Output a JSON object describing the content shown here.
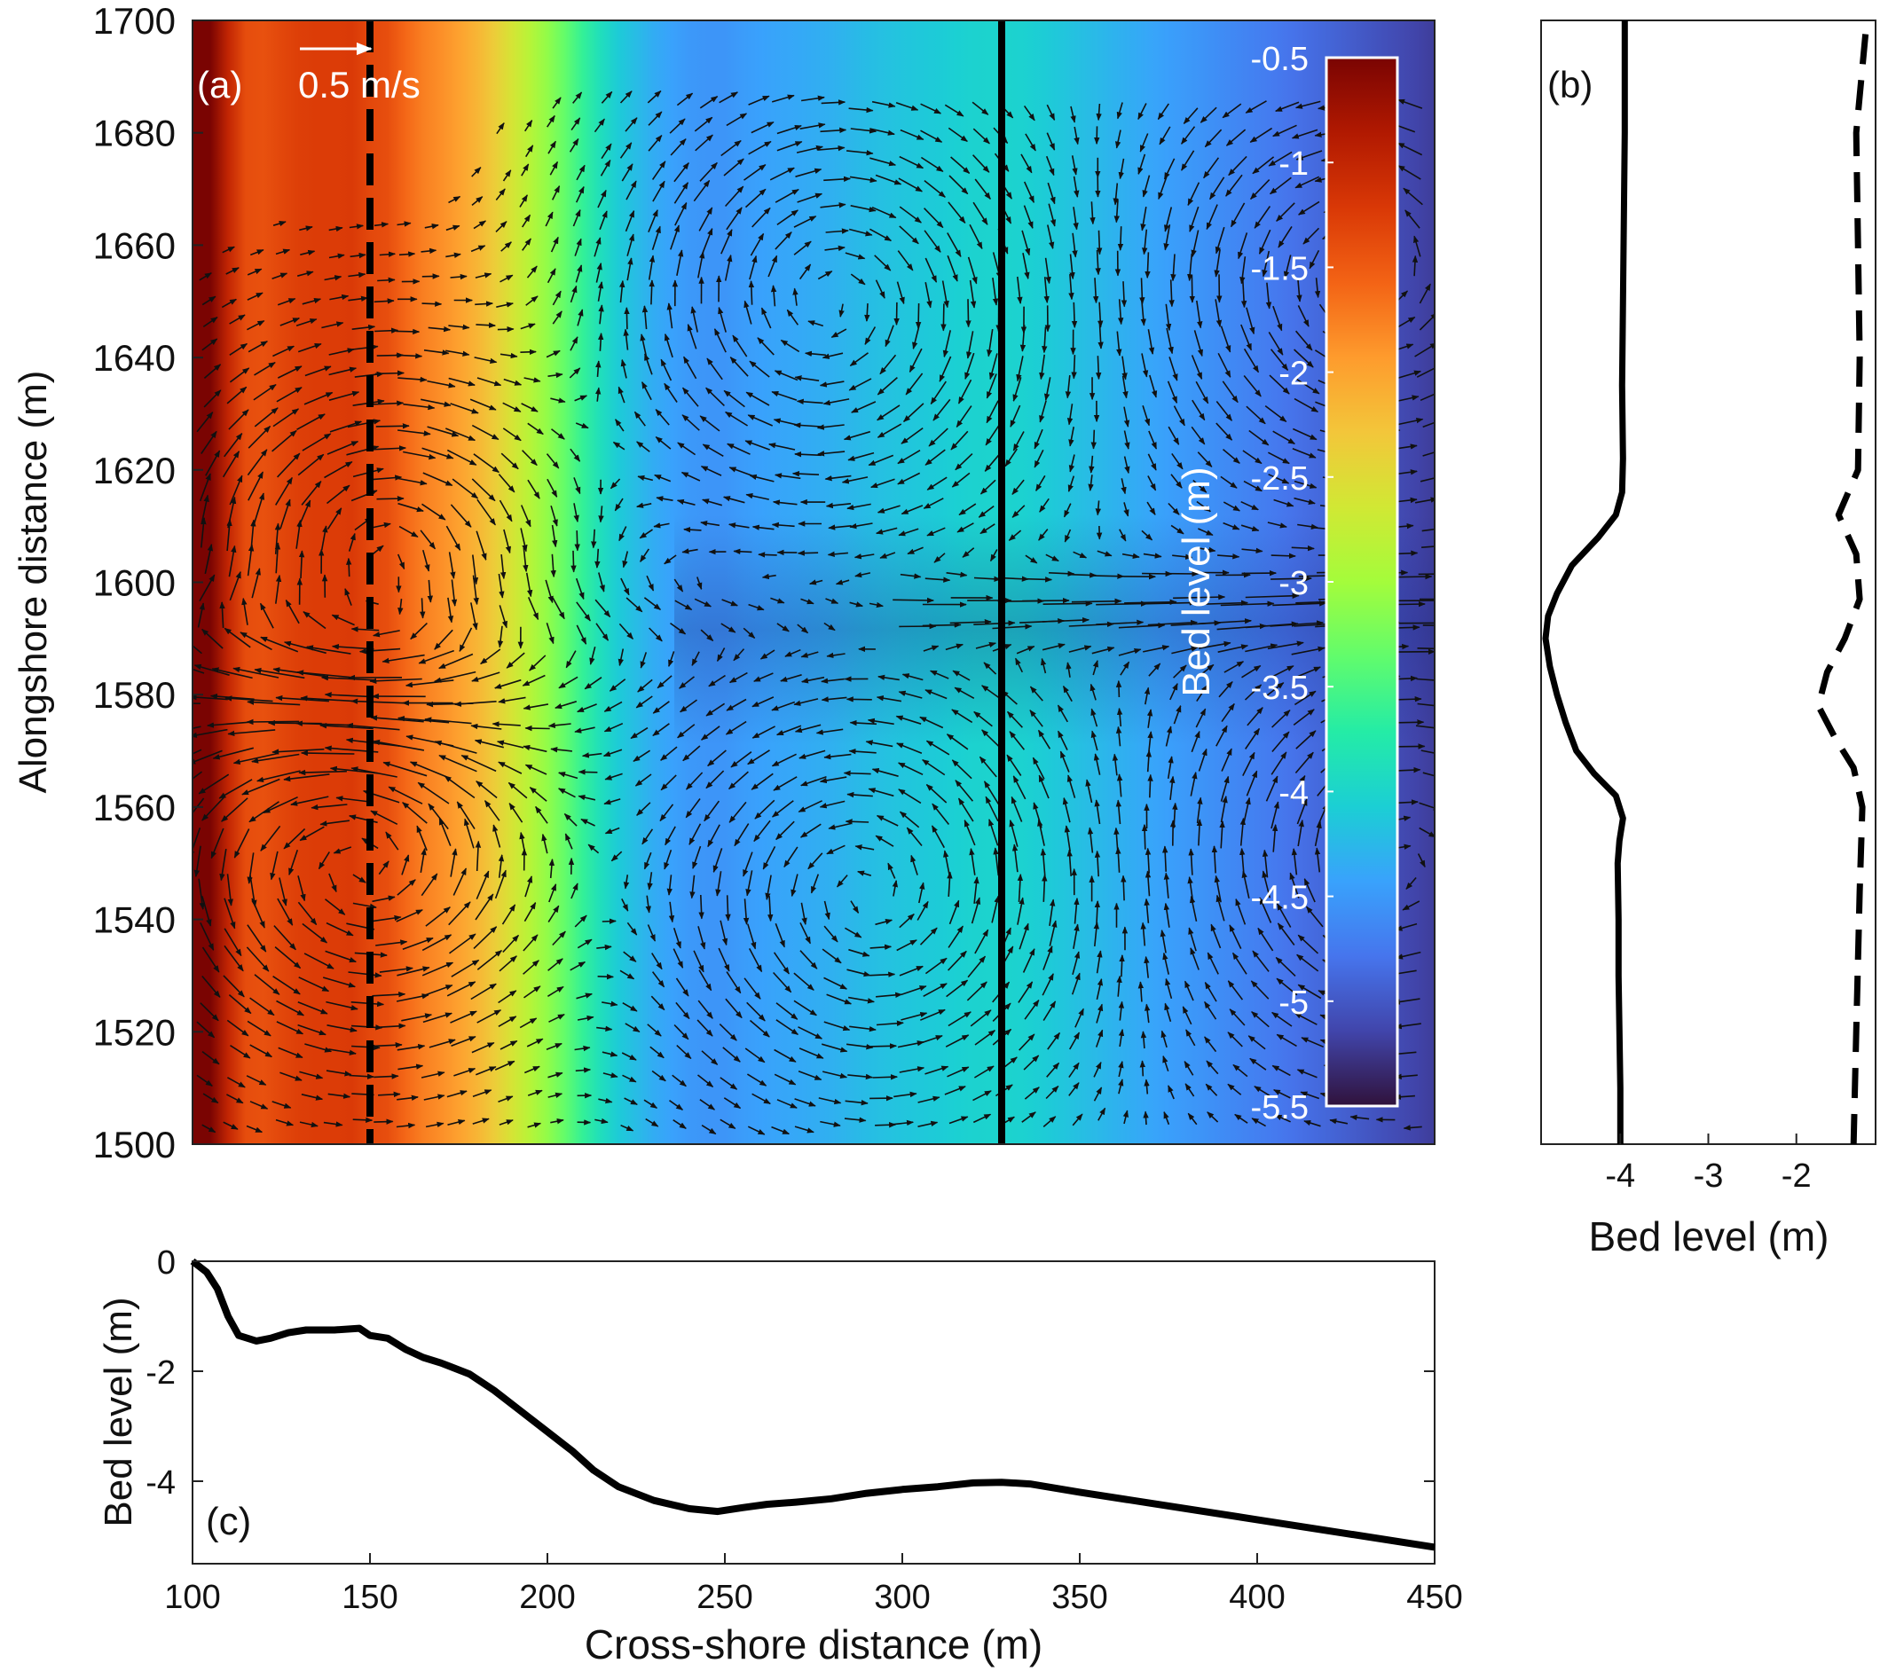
{
  "chart_data": [
    {
      "panel": "a",
      "type": "heatmap",
      "panel_label": "(a)",
      "ylabel": "Alongshore distance (m)",
      "xlim": [
        100,
        450
      ],
      "ylim": [
        1500,
        1700
      ],
      "yticks": [
        1500,
        1520,
        1540,
        1560,
        1580,
        1600,
        1620,
        1640,
        1660,
        1680,
        1700
      ],
      "colorbar": {
        "label": "Bed level (m)",
        "range": [
          -5.5,
          -0.5
        ],
        "ticks": [
          -0.5,
          -1,
          -1.5,
          -2,
          -2.5,
          -3,
          -3.5,
          -4,
          -4.5,
          -5,
          -5.5
        ],
        "colormap": [
          "#30123b",
          "#4145ab",
          "#4675ed",
          "#39a2fc",
          "#1bcfd4",
          "#24eca6",
          "#61fc6c",
          "#a4fc3b",
          "#d1e834",
          "#f3c63a",
          "#fe9b2d",
          "#f36315",
          "#d93806",
          "#b11901",
          "#7a0402"
        ]
      },
      "quiver_key": {
        "label": "0.5 m/s",
        "speed_ms": 0.5
      },
      "transects": [
        {
          "x": 150,
          "style": "dashed"
        },
        {
          "x": 328,
          "style": "solid"
        }
      ],
      "eddies": [
        {
          "x": 148,
          "y": 1555,
          "sense": "counterclockwise"
        },
        {
          "x": 152,
          "y": 1600,
          "sense": "clockwise"
        },
        {
          "x": 440,
          "y": 1550,
          "sense": "clockwise"
        },
        {
          "x": 430,
          "y": 1655,
          "sense": "counterclockwise"
        },
        {
          "x": 290,
          "y": 1545,
          "sense": "counterclockwise"
        },
        {
          "x": 280,
          "y": 1650,
          "sense": "clockwise"
        }
      ]
    },
    {
      "panel": "b",
      "type": "line",
      "panel_label": "(b)",
      "xlabel": "Bed level (m)",
      "xlim": [
        -4.9,
        -1.1
      ],
      "xticks": [
        -4,
        -3,
        -2
      ],
      "ylim": [
        1500,
        1700
      ],
      "series": [
        {
          "style": "solid",
          "points": [
            [
              -4.0,
              1500
            ],
            [
              -4.0,
              1510
            ],
            [
              -4.01,
              1520
            ],
            [
              -4.02,
              1530
            ],
            [
              -4.02,
              1540
            ],
            [
              -4.03,
              1550
            ],
            [
              -4.01,
              1554
            ],
            [
              -3.97,
              1558
            ],
            [
              -4.05,
              1562
            ],
            [
              -4.3,
              1566
            ],
            [
              -4.5,
              1570
            ],
            [
              -4.62,
              1575
            ],
            [
              -4.72,
              1580
            ],
            [
              -4.8,
              1585
            ],
            [
              -4.85,
              1590
            ],
            [
              -4.82,
              1594
            ],
            [
              -4.72,
              1598
            ],
            [
              -4.55,
              1603
            ],
            [
              -4.25,
              1608
            ],
            [
              -4.05,
              1612
            ],
            [
              -3.98,
              1616
            ],
            [
              -3.97,
              1622
            ],
            [
              -3.98,
              1635
            ],
            [
              -3.97,
              1650
            ],
            [
              -3.96,
              1665
            ],
            [
              -3.95,
              1680
            ],
            [
              -3.95,
              1690
            ],
            [
              -3.95,
              1700
            ]
          ]
        },
        {
          "style": "dashed",
          "points": [
            [
              -1.35,
              1500
            ],
            [
              -1.32,
              1520
            ],
            [
              -1.28,
              1545
            ],
            [
              -1.25,
              1560
            ],
            [
              -1.35,
              1567
            ],
            [
              -1.55,
              1572
            ],
            [
              -1.75,
              1578
            ],
            [
              -1.65,
              1584
            ],
            [
              -1.45,
              1590
            ],
            [
              -1.28,
              1597
            ],
            [
              -1.32,
              1605
            ],
            [
              -1.52,
              1612
            ],
            [
              -1.3,
              1620
            ],
            [
              -1.28,
              1640
            ],
            [
              -1.3,
              1660
            ],
            [
              -1.32,
              1680
            ],
            [
              -1.2,
              1700
            ]
          ]
        }
      ]
    },
    {
      "panel": "c",
      "type": "line",
      "panel_label": "(c)",
      "xlabel": "Cross-shore distance (m)",
      "ylabel": "Bed level (m)",
      "xlim": [
        100,
        450
      ],
      "ylim": [
        -5.5,
        0
      ],
      "xticks": [
        100,
        150,
        200,
        250,
        300,
        350,
        400,
        450
      ],
      "yticks": [
        0,
        -2,
        -4
      ],
      "series": [
        {
          "style": "solid",
          "points": [
            [
              100,
              0
            ],
            [
              104,
              -0.2
            ],
            [
              107,
              -0.5
            ],
            [
              110,
              -1.0
            ],
            [
              113,
              -1.35
            ],
            [
              118,
              -1.45
            ],
            [
              122,
              -1.4
            ],
            [
              127,
              -1.3
            ],
            [
              132,
              -1.25
            ],
            [
              140,
              -1.25
            ],
            [
              147,
              -1.22
            ],
            [
              150,
              -1.35
            ],
            [
              155,
              -1.4
            ],
            [
              160,
              -1.6
            ],
            [
              165,
              -1.75
            ],
            [
              170,
              -1.85
            ],
            [
              178,
              -2.05
            ],
            [
              185,
              -2.35
            ],
            [
              192,
              -2.7
            ],
            [
              200,
              -3.1
            ],
            [
              207,
              -3.45
            ],
            [
              213,
              -3.8
            ],
            [
              220,
              -4.1
            ],
            [
              230,
              -4.35
            ],
            [
              240,
              -4.5
            ],
            [
              248,
              -4.55
            ],
            [
              255,
              -4.48
            ],
            [
              262,
              -4.42
            ],
            [
              270,
              -4.38
            ],
            [
              280,
              -4.32
            ],
            [
              290,
              -4.22
            ],
            [
              300,
              -4.15
            ],
            [
              310,
              -4.1
            ],
            [
              320,
              -4.03
            ],
            [
              328,
              -4.02
            ],
            [
              336,
              -4.05
            ],
            [
              350,
              -4.2
            ],
            [
              370,
              -4.4
            ],
            [
              400,
              -4.7
            ],
            [
              425,
              -4.95
            ],
            [
              450,
              -5.2
            ]
          ]
        }
      ]
    }
  ]
}
